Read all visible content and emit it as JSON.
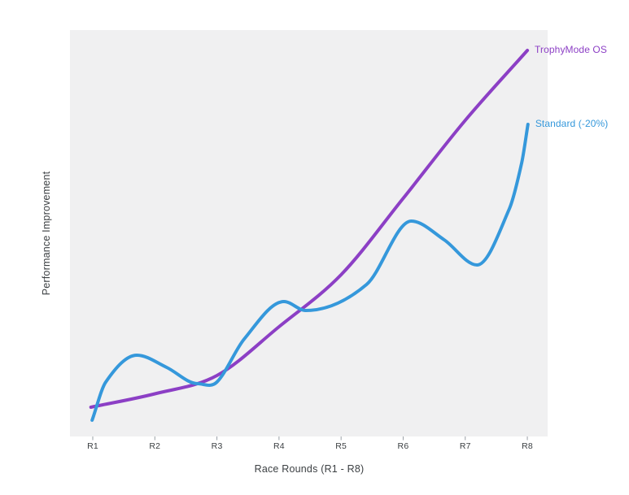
{
  "chart_data": {
    "type": "line",
    "title": "",
    "xlabel": "Race Rounds (R1 - R8)",
    "ylabel": "Performance Improvement",
    "x_ticks": [
      "R1",
      "R2",
      "R3",
      "R4",
      "R5",
      "R6",
      "R7",
      "R8"
    ],
    "x_tick_positions": [
      1,
      2,
      3,
      4,
      5,
      6,
      7,
      8
    ],
    "x_range": [
      0.633,
      8.327
    ],
    "y_range": [
      0,
      100
    ],
    "grid": false,
    "y_tick_labels_shown": false,
    "legend_position": "labels-at-line-ends",
    "plot_background": "#f0f0f1",
    "tick_mark_color": "#9aa0a6",
    "text_color": "#3c4043",
    "series": [
      {
        "name": "TrophyMode OS",
        "color": "#8c3fc5",
        "shape": "smooth-accelerating",
        "points": [
          [
            0.97,
            7.2
          ],
          [
            2,
            10.5
          ],
          [
            3,
            15
          ],
          [
            4,
            27
          ],
          [
            5,
            39.8
          ],
          [
            6,
            58.6
          ],
          [
            7,
            77.8
          ],
          [
            8,
            95
          ]
        ]
      },
      {
        "name": "Standard (-20%)",
        "color": "#3598db",
        "shape": "oscillating-rising",
        "points": [
          [
            0.99,
            4
          ],
          [
            1.21,
            13.4
          ],
          [
            1.71,
            20
          ],
          [
            2.19,
            17
          ],
          [
            2.69,
            13
          ],
          [
            3,
            13.4
          ],
          [
            3.44,
            24
          ],
          [
            4.08,
            33.2
          ],
          [
            4.43,
            31
          ],
          [
            5.41,
            37.4
          ],
          [
            6.13,
            53
          ],
          [
            6.66,
            48.4
          ],
          [
            7.19,
            42.2
          ],
          [
            7.71,
            56
          ],
          [
            7.91,
            67.4
          ],
          [
            8.01,
            76.8
          ]
        ]
      }
    ]
  }
}
